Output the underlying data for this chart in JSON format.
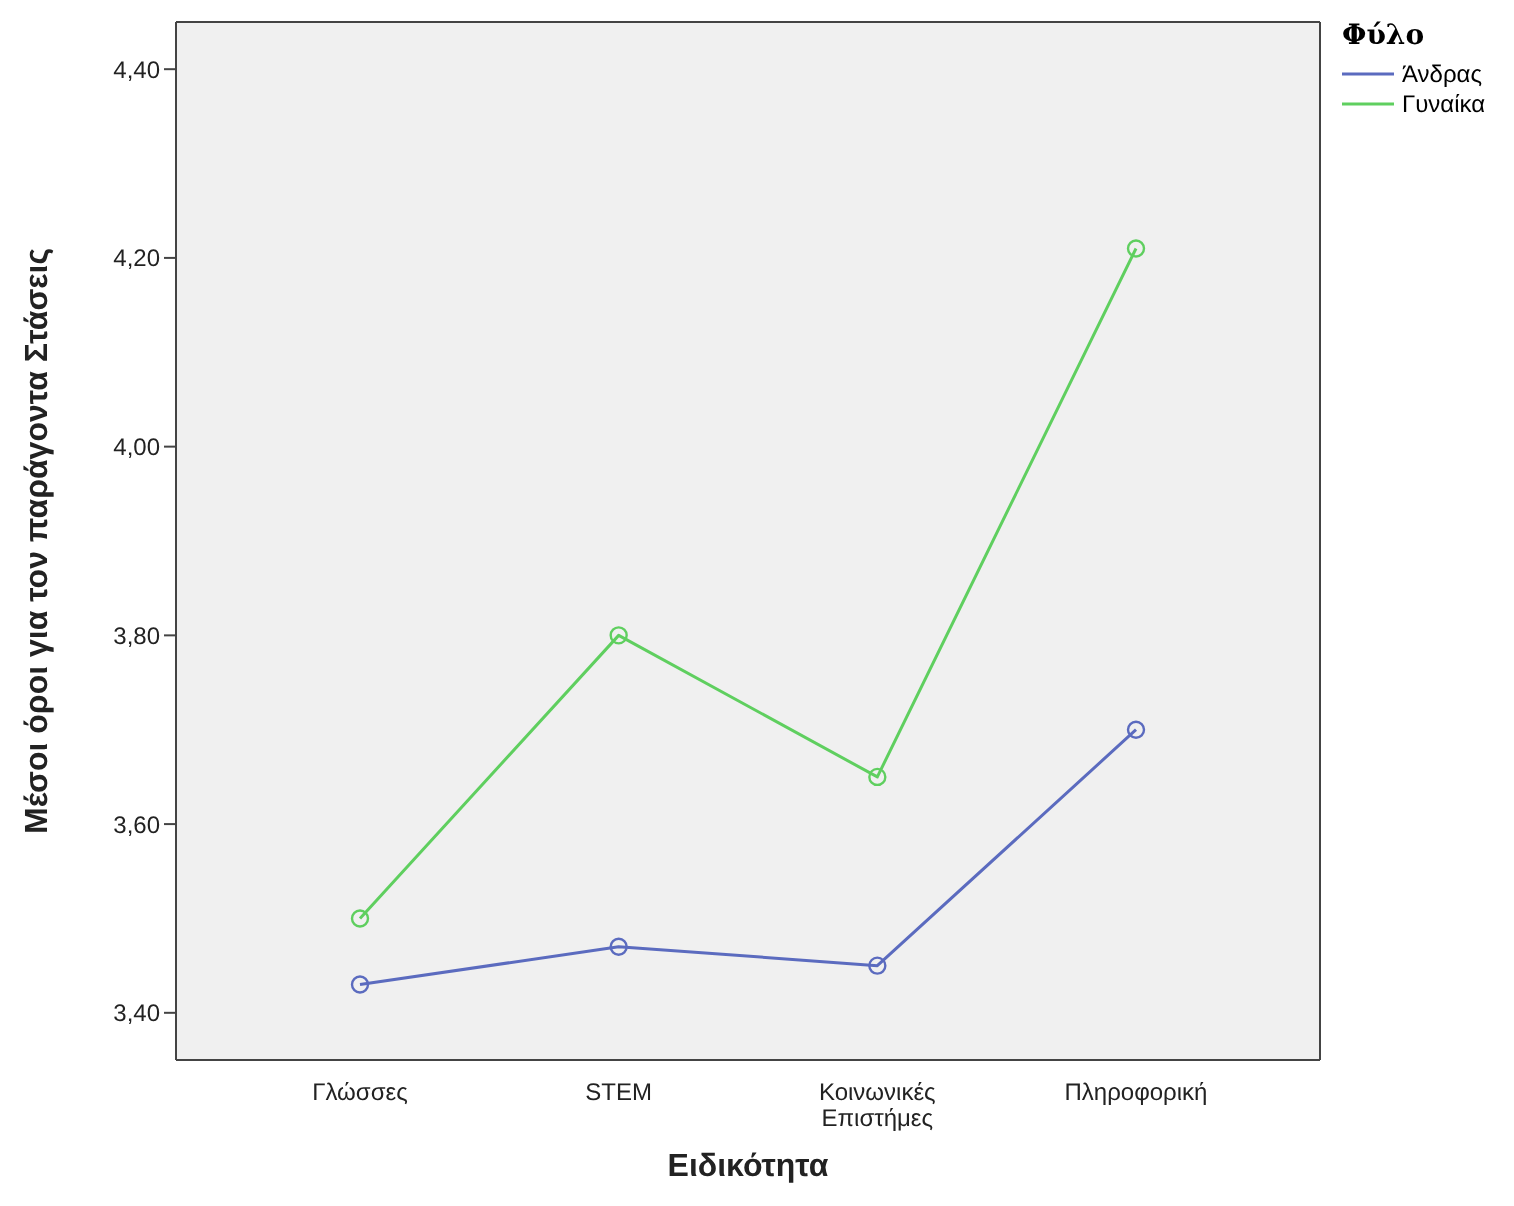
{
  "chart_data": {
    "type": "line",
    "xlabel": "Ειδικότητα",
    "ylabel": "Μέσοι όροι για τον παράγοντα Στάσεις",
    "legend_title": "Φύλο",
    "categories": [
      "Γλώσσες",
      "STEM",
      "Κοινωνικές Επιστήμες",
      "Πληροφορική"
    ],
    "series": [
      {
        "name": "Άνδρας",
        "color": "#5b6bbf",
        "values": [
          3.43,
          3.47,
          3.45,
          3.7
        ]
      },
      {
        "name": "Γυναίκα",
        "color": "#5fcf5f",
        "values": [
          3.5,
          3.8,
          3.65,
          4.21
        ]
      }
    ],
    "ylim": [
      3.35,
      4.45
    ],
    "yticks": [
      {
        "value": 3.4,
        "label": "3,40"
      },
      {
        "value": 3.6,
        "label": "3,60"
      },
      {
        "value": 3.8,
        "label": "3,80"
      },
      {
        "value": 4.0,
        "label": "4,00"
      },
      {
        "value": 4.2,
        "label": "4,20"
      },
      {
        "value": 4.4,
        "label": "4,40"
      }
    ],
    "grid": false,
    "legend": "top right",
    "marker": "circle",
    "line_style": "solid"
  }
}
